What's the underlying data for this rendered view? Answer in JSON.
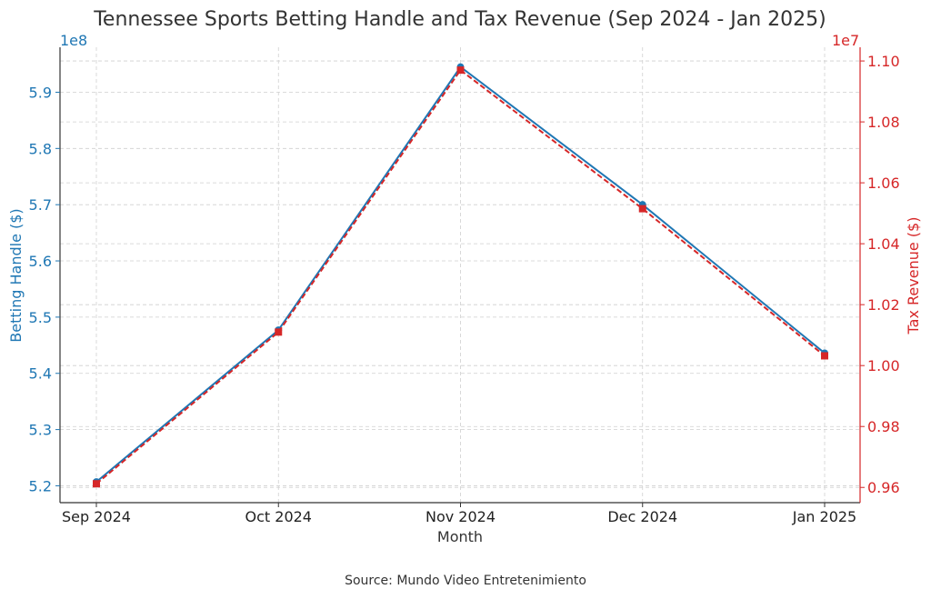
{
  "chart_data": {
    "type": "line",
    "title": "Tennessee Sports Betting Handle and Tax Revenue (Sep 2024 - Jan 2025)",
    "xlabel": "Month",
    "categories": [
      "Sep 2024",
      "Oct 2024",
      "Nov 2024",
      "Dec 2024",
      "Jan 2025"
    ],
    "y_left": {
      "label": "Betting Handle ($)",
      "offset_text": "1e8",
      "ylim": [
        5.17,
        5.98
      ],
      "ticks": [
        5.2,
        5.3,
        5.4,
        5.5,
        5.6,
        5.7,
        5.8,
        5.9
      ],
      "tick_labels": [
        "5.2",
        "5.3",
        "5.4",
        "5.5",
        "5.6",
        "5.7",
        "5.8",
        "5.9"
      ],
      "color": "#1f77b4"
    },
    "y_right": {
      "label": "Tax Revenue ($)",
      "offset_text": "1e7",
      "ylim": [
        0.955,
        1.1045
      ],
      "ticks": [
        0.96,
        0.98,
        1.0,
        1.02,
        1.04,
        1.06,
        1.08,
        1.1
      ],
      "tick_labels": [
        "0.96",
        "0.98",
        "1.00",
        "1.02",
        "1.04",
        "1.06",
        "1.08",
        "1.10"
      ],
      "color": "#d62728"
    },
    "series": [
      {
        "name": "",
        "axis": "left",
        "color": "#1f77b4",
        "marker": "circle",
        "values": [
          5.207,
          5.477,
          5.945,
          5.7,
          5.436
        ]
      },
      {
        "name": "",
        "axis": "right",
        "color": "#d62728",
        "marker": "square",
        "linestyle": "dashed",
        "values": [
          0.9612,
          1.011,
          1.097,
          1.0515,
          1.0032
        ]
      }
    ],
    "grid": true,
    "source": "Source: Mundo Video Entretenimiento"
  }
}
